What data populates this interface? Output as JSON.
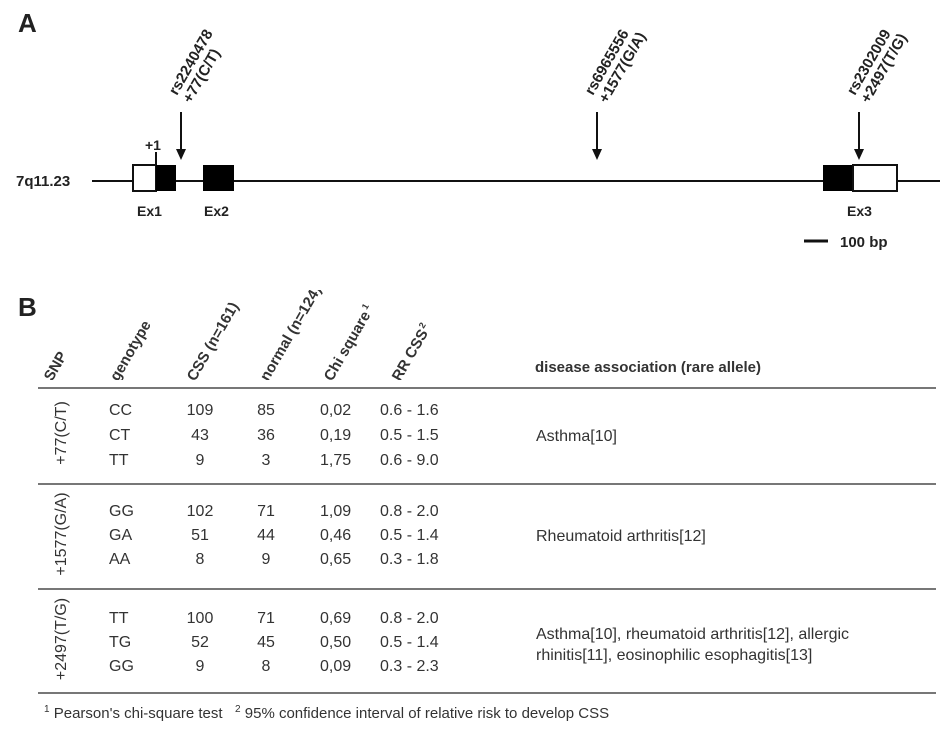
{
  "panelA": {
    "label": "A",
    "chromosome": "7q11.23",
    "plus_one": "+1",
    "exons": [
      "Ex1",
      "Ex2",
      "Ex3"
    ],
    "scale_label": "100 bp",
    "snps": [
      {
        "id": "rs2240478",
        "pos": "+77(C/T)"
      },
      {
        "id": "rs6965556",
        "pos": "+1577(G/A)"
      },
      {
        "id": "rs2302009",
        "pos": "+2497(T/G)"
      }
    ]
  },
  "panelB": {
    "label": "B",
    "headers": {
      "snp": "SNP",
      "genotype": "genotype",
      "css": "CSS (n=161)",
      "normal": "normal (n=124)",
      "chi": "Chi square",
      "chi_sup": "1",
      "rr": "RR CSS",
      "rr_sup": "2",
      "disease": "disease association (rare allele)"
    },
    "groups": [
      {
        "snp": "+77(C/T)",
        "rows": [
          {
            "genotype": "CC",
            "css": "109",
            "normal": "85",
            "chi": "0,02",
            "rr": "0.6 - 1.6"
          },
          {
            "genotype": "CT",
            "css": "43",
            "normal": "36",
            "chi": "0,19",
            "rr": "0.5 - 1.5"
          },
          {
            "genotype": "TT",
            "css": "9",
            "normal": "3",
            "chi": "1,75",
            "rr": "0.6 - 9.0"
          }
        ],
        "disease_lines": [
          "Asthma[10]"
        ]
      },
      {
        "snp": "+1577(G/A)",
        "rows": [
          {
            "genotype": "GG",
            "css": "102",
            "normal": "71",
            "chi": "1,09",
            "rr": "0.8 - 2.0"
          },
          {
            "genotype": "GA",
            "css": "51",
            "normal": "44",
            "chi": "0,46",
            "rr": "0.5 - 1.4"
          },
          {
            "genotype": "AA",
            "css": "8",
            "normal": "9",
            "chi": "0,65",
            "rr": "0.3 - 1.8"
          }
        ],
        "disease_lines": [
          "Rheumatoid arthritis[12]"
        ]
      },
      {
        "snp": "+2497(T/G)",
        "rows": [
          {
            "genotype": "TT",
            "css": "100",
            "normal": "71",
            "chi": "0,69",
            "rr": "0.8 - 2.0"
          },
          {
            "genotype": "TG",
            "css": "52",
            "normal": "45",
            "chi": "0,50",
            "rr": "0.5 - 1.4"
          },
          {
            "genotype": "GG",
            "css": "9",
            "normal": "8",
            "chi": "0,09",
            "rr": "0.3 - 2.3"
          }
        ],
        "disease_lines": [
          "Asthma[10], rheumatoid arthritis[12], allergic",
          "rhinitis[11], eosinophilic esophagitis[13]"
        ]
      }
    ],
    "footnote": {
      "sup1": "1",
      "text1": " Pearson's chi-square test",
      "sup2": "2",
      "text2": " 95% confidence interval of relative risk to develop CSS"
    }
  }
}
